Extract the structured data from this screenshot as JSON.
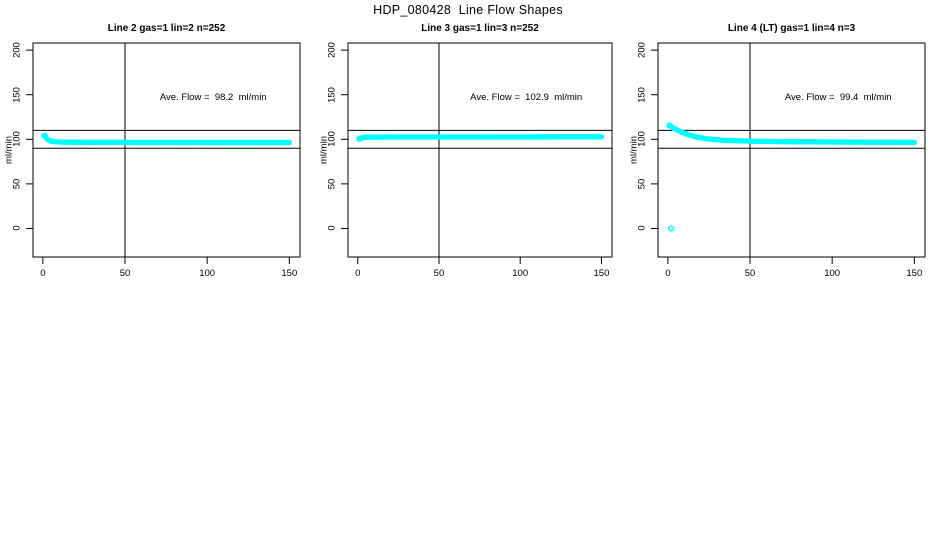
{
  "figure": {
    "main_title": "HDP_080428  Line Flow Shapes",
    "background": "#ffffff"
  },
  "chart_data": {
    "type": "scatter",
    "title": "HDP_080428  Line Flow Shapes",
    "ylabel": "ml/min",
    "xlabel": "",
    "grid": false,
    "legend": false,
    "marker_color": "#00ffff",
    "line_color": "#000000",
    "x_ticks": [
      0,
      50,
      100,
      150
    ],
    "y_ticks": [
      0,
      50,
      100,
      150,
      200
    ],
    "xlim": [
      -6,
      156.5
    ],
    "ylim": [
      -32,
      208
    ],
    "ref_lines_horizontal": [
      110,
      90
    ],
    "ref_lines_vertical": [
      50
    ],
    "charts": [
      {
        "title": "Line 2 gas=1 lin=2 n=252",
        "annotation": "Ave. Flow =  98.2  ml/min",
        "ave_flow": 98.2,
        "n": 252,
        "points": [
          [
            1,
            104
          ],
          [
            2,
            101.5
          ],
          [
            3,
            99.5
          ],
          [
            5,
            98
          ],
          [
            8,
            97.2
          ],
          [
            12,
            96.9
          ],
          [
            20,
            96.7
          ],
          [
            40,
            96.6
          ],
          [
            60,
            96.5
          ],
          [
            80,
            96.5
          ],
          [
            100,
            96.4
          ],
          [
            120,
            96.4
          ],
          [
            150,
            96.4
          ]
        ],
        "outliers": []
      },
      {
        "title": "Line 3 gas=1 lin=3 n=252",
        "annotation": "Ave. Flow =  102.9  ml/min",
        "ave_flow": 102.9,
        "n": 252,
        "points": [
          [
            1,
            100.5
          ],
          [
            2,
            101.5
          ],
          [
            4,
            102.2
          ],
          [
            8,
            102.5
          ],
          [
            20,
            102.6
          ],
          [
            50,
            102.7
          ],
          [
            80,
            102.7
          ],
          [
            110,
            102.7
          ],
          [
            150,
            102.8
          ]
        ],
        "outliers": []
      },
      {
        "title": "Line 4 (LT) gas=1 lin=4 n=3",
        "annotation": "Ave. Flow =  99.4  ml/min",
        "ave_flow": 99.4,
        "n": 3,
        "points": [
          [
            1,
            115.5
          ],
          [
            2,
            114.5
          ],
          [
            4,
            112
          ],
          [
            6,
            110
          ],
          [
            9,
            107.5
          ],
          [
            13,
            104.8
          ],
          [
            18,
            102.3
          ],
          [
            25,
            100.3
          ],
          [
            35,
            98.8
          ],
          [
            50,
            98
          ],
          [
            70,
            97.4
          ],
          [
            90,
            97.1
          ],
          [
            110,
            96.9
          ],
          [
            130,
            96.7
          ],
          [
            150,
            96.6
          ]
        ],
        "outliers": [
          [
            2,
            0
          ]
        ]
      }
    ]
  }
}
